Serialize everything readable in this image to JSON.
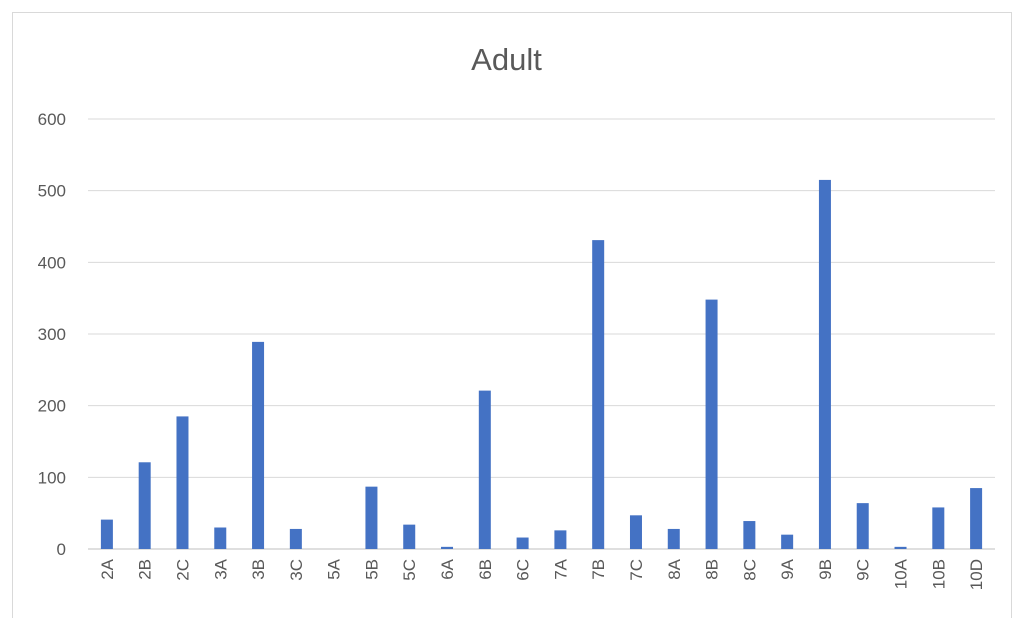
{
  "chart_data": {
    "type": "bar",
    "title": "Adult",
    "xlabel": "",
    "ylabel": "",
    "categories": [
      "2A",
      "2B",
      "2C",
      "3A",
      "3B",
      "3C",
      "5A",
      "5B",
      "5C",
      "6A",
      "6B",
      "6C",
      "7A",
      "7B",
      "7C",
      "8A",
      "8B",
      "8C",
      "9A",
      "9B",
      "9C",
      "10A",
      "10B",
      "10D"
    ],
    "values": [
      41,
      121,
      185,
      30,
      289,
      28,
      0,
      87,
      34,
      3,
      221,
      16,
      26,
      431,
      47,
      28,
      348,
      39,
      20,
      515,
      64,
      3,
      58,
      85
    ],
    "ylim": [
      0,
      600
    ],
    "yticks": [
      "0",
      "100",
      "200",
      "300",
      "400",
      "500",
      "600"
    ],
    "grid": true,
    "legend": "none",
    "colors": {
      "bar": "#4472C4",
      "grid": "#d9d9d9",
      "axis": "#bfbfbf",
      "text": "#595959"
    }
  }
}
